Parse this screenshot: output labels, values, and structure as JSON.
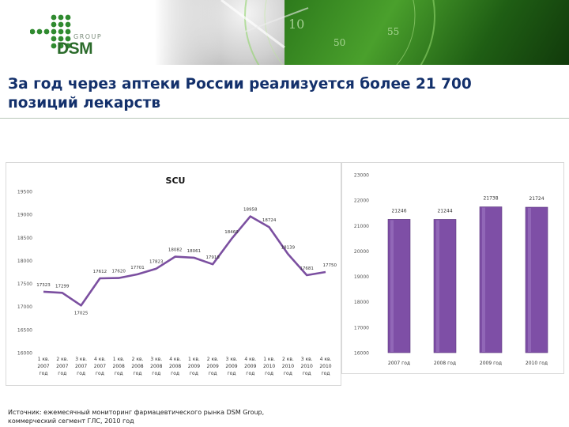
{
  "header": {
    "logo_text_group": "GROUP",
    "logo_text_brand": "DSM"
  },
  "title": {
    "line1": "За год через аптеки России реализуется более 21 700",
    "line2": "позиций лекарств"
  },
  "chart_data": [
    {
      "type": "line",
      "title": "SCU",
      "color": "#7b4fa0",
      "categories": [
        "1 кв. 2007 год",
        "2 кв. 2007 год",
        "3 кв. 2007 год",
        "4 кв. 2007 год",
        "1 кв. 2008 год",
        "2 кв. 2008 год",
        "3 кв. 2008 год",
        "4 кв. 2008 год",
        "1 кв. 2009 год",
        "2 кв. 2009 год",
        "3 кв. 2009 год",
        "4 кв. 2009 год",
        "1 кв. 2010 год",
        "2 кв. 2010 год",
        "3 кв. 2010 год",
        "4 кв. 2010 год"
      ],
      "values": [
        17323,
        17299,
        17025,
        17612,
        17620,
        17701,
        17823,
        18082,
        18061,
        17918,
        18469,
        18958,
        18724,
        18139,
        17681,
        17750
      ],
      "data_labels": [
        "17323",
        "17299",
        "17025",
        "17612",
        "17620",
        "17701",
        "17823",
        "18082",
        "18061",
        "17918",
        "18469",
        "18958",
        "18724",
        "18139",
        "17681",
        "17750"
      ],
      "ylim": [
        16000,
        19500
      ],
      "yticks": [
        "16000",
        "16500",
        "17000",
        "17500",
        "18000",
        "18500",
        "19000",
        "19500"
      ],
      "grid": false
    },
    {
      "type": "bar",
      "color": "#7e4fa6",
      "categories": [
        "2007 год",
        "2008 год",
        "2009 год",
        "2010 год"
      ],
      "values": [
        21246,
        21244,
        21738,
        21724
      ],
      "data_labels": [
        "21246",
        "21244",
        "21738",
        "21724"
      ],
      "ylim": [
        16000,
        23000
      ],
      "yticks": [
        "16000",
        "17000",
        "18000",
        "19000",
        "20000",
        "21000",
        "22000",
        "23000"
      ],
      "grid": false
    }
  ],
  "source": {
    "line1": "Источник: ежемесячный мониторинг фармацевтического рынка DSM Group,",
    "line2": "коммерческий сегмент ГЛС, 2010 год"
  }
}
